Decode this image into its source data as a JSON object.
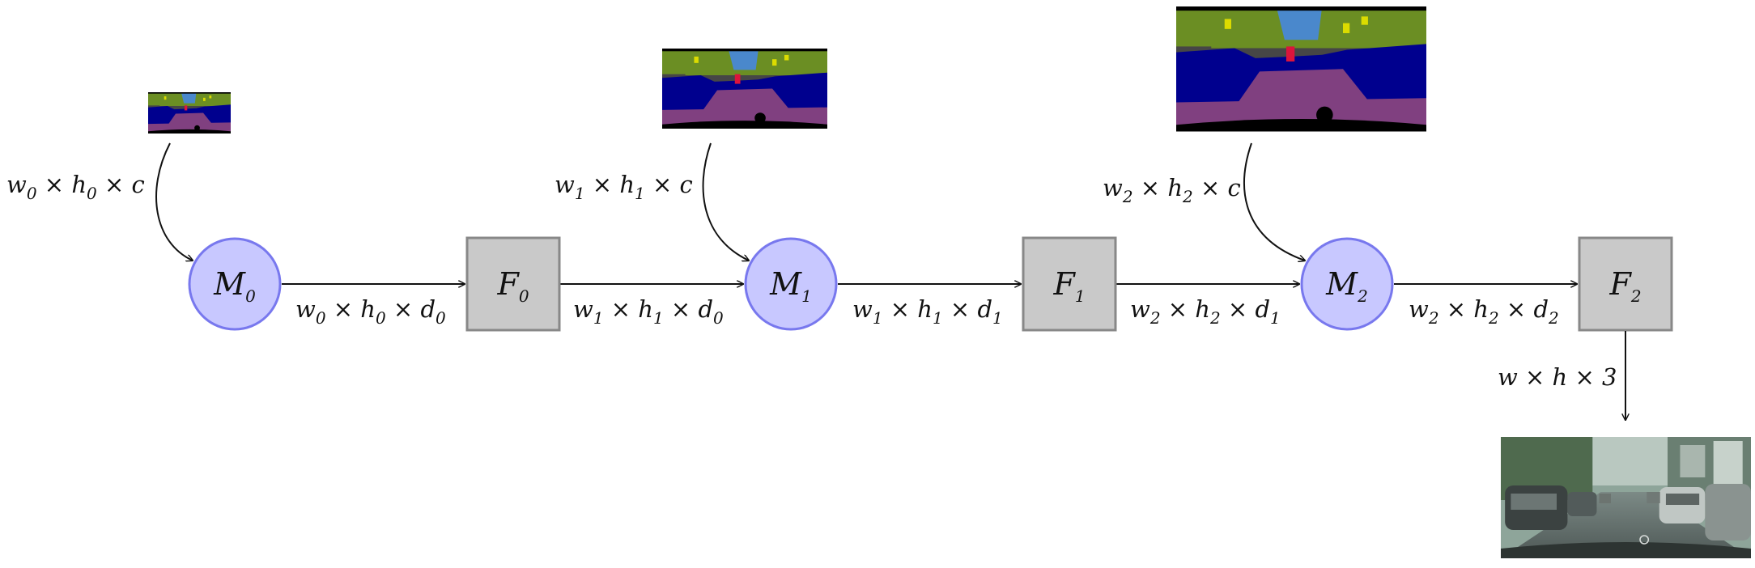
{
  "input_maps": [
    {
      "label": {
        "base": "w",
        "s1": "0",
        "mid": " × ",
        "base2": "h",
        "s2": "0",
        "tail": " × c"
      }
    },
    {
      "label": {
        "base": "w",
        "s1": "1",
        "mid": " × ",
        "base2": "h",
        "s2": "1",
        "tail": " × c"
      }
    },
    {
      "label": {
        "base": "w",
        "s1": "2",
        "mid": " × ",
        "base2": "h",
        "s2": "2",
        "tail": " × c"
      }
    }
  ],
  "modules": [
    {
      "letter": "M",
      "index": "0",
      "kind": "merge",
      "color": "#c8c8ff",
      "stroke": "#7878ee"
    },
    {
      "letter": "F",
      "index": "0",
      "kind": "filter",
      "color": "#c9c9c9",
      "stroke": "#888888"
    },
    {
      "letter": "M",
      "index": "1",
      "kind": "merge",
      "color": "#c8c8ff",
      "stroke": "#7878ee"
    },
    {
      "letter": "F",
      "index": "1",
      "kind": "filter",
      "color": "#c9c9c9",
      "stroke": "#888888"
    },
    {
      "letter": "M",
      "index": "2",
      "kind": "merge",
      "color": "#c8c8ff",
      "stroke": "#7878ee"
    },
    {
      "letter": "F",
      "index": "2",
      "kind": "filter",
      "color": "#c9c9c9",
      "stroke": "#888888"
    }
  ],
  "edges": [
    {
      "w": "0",
      "h": "0",
      "d": "0"
    },
    {
      "w": "1",
      "h": "1",
      "d": "0"
    },
    {
      "w": "1",
      "h": "1",
      "d": "1"
    },
    {
      "w": "2",
      "h": "2",
      "d": "1"
    },
    {
      "w": "2",
      "h": "2",
      "d": "2"
    }
  ],
  "output": {
    "label": "w × h × 3"
  },
  "palette": {
    "sky": "#4a88cc",
    "vegetation": "#6b8e23",
    "building": "#464646",
    "car": "#00008e",
    "road": "#804080",
    "sign": "#dcdc00",
    "person": "#dc143c",
    "ego": "#000000"
  }
}
